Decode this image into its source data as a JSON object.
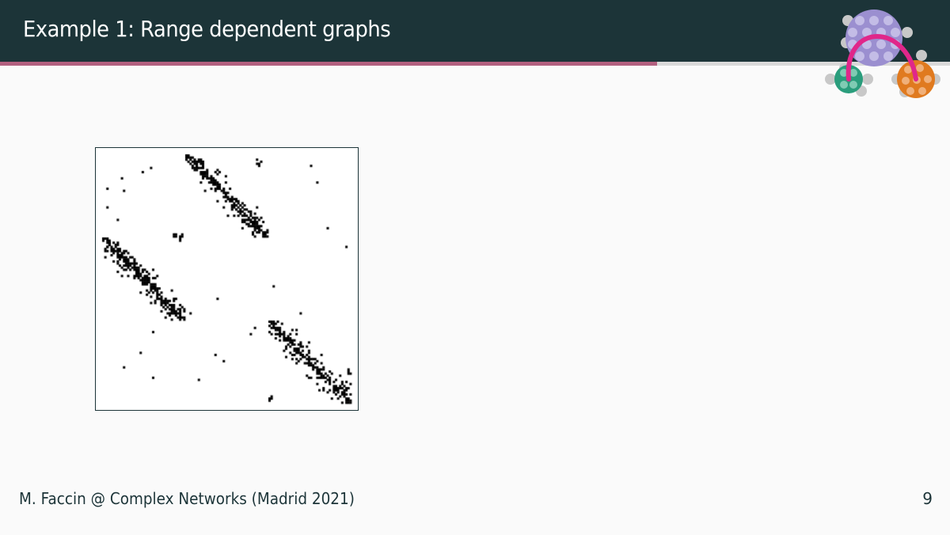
{
  "slide": {
    "title": "Example 1: Range dependent graphs",
    "footer_text": "M. Faccin @ Complex Networks (Madrid 2021)",
    "page_number": "9",
    "progress_fraction": 0.692
  },
  "colors": {
    "header_bg": "#1c3438",
    "progress_fill": "#b2607f",
    "progress_track": "#d9d9d9",
    "logo_purple": "#9b8fd0",
    "logo_green": "#2a9d7c",
    "logo_orange": "#e07a1f",
    "logo_arc": "#e0278a"
  },
  "logo": {
    "icon": "network-communities-logo"
  },
  "figure": {
    "type": "adjacency-matrix",
    "nodes": 120,
    "blocks": [
      {
        "name": "block-1",
        "start": 0,
        "end": 39
      },
      {
        "name": "block-2",
        "start": 40,
        "end": 79
      },
      {
        "name": "block-3",
        "start": 80,
        "end": 119
      }
    ],
    "pattern": "band-diagonal blocks permuted"
  }
}
